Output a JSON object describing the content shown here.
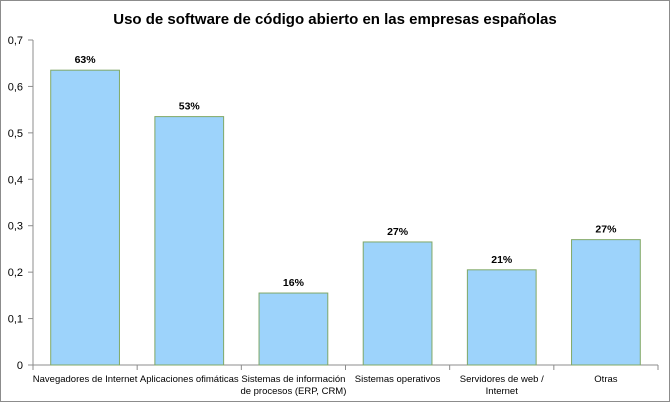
{
  "chart_data": {
    "type": "bar",
    "title": "Uso de software de código abierto en las empresas españolas",
    "categories": [
      [
        "Navegadores de Internet"
      ],
      [
        "Aplicaciones ofimáticas"
      ],
      [
        "Sistemas de información",
        "de procesos (ERP, CRM)"
      ],
      [
        "Sistemas operativos"
      ],
      [
        "Servidores de web /",
        "Internet"
      ],
      [
        "Otras"
      ]
    ],
    "values": [
      0.635,
      0.535,
      0.155,
      0.265,
      0.205,
      0.27
    ],
    "data_labels": [
      "63%",
      "53%",
      "16%",
      "27%",
      "21%",
      "27%"
    ],
    "y_ticks": [
      "0",
      "0,1",
      "0,2",
      "0,3",
      "0,4",
      "0,5",
      "0,6",
      "0,7"
    ],
    "ylim": [
      0,
      0.7
    ],
    "grid": false,
    "legend": "none",
    "colors": {
      "bar_fill": "#9dd3fb",
      "bar_stroke": "#80a866",
      "axis": "#8c8c8c"
    }
  }
}
